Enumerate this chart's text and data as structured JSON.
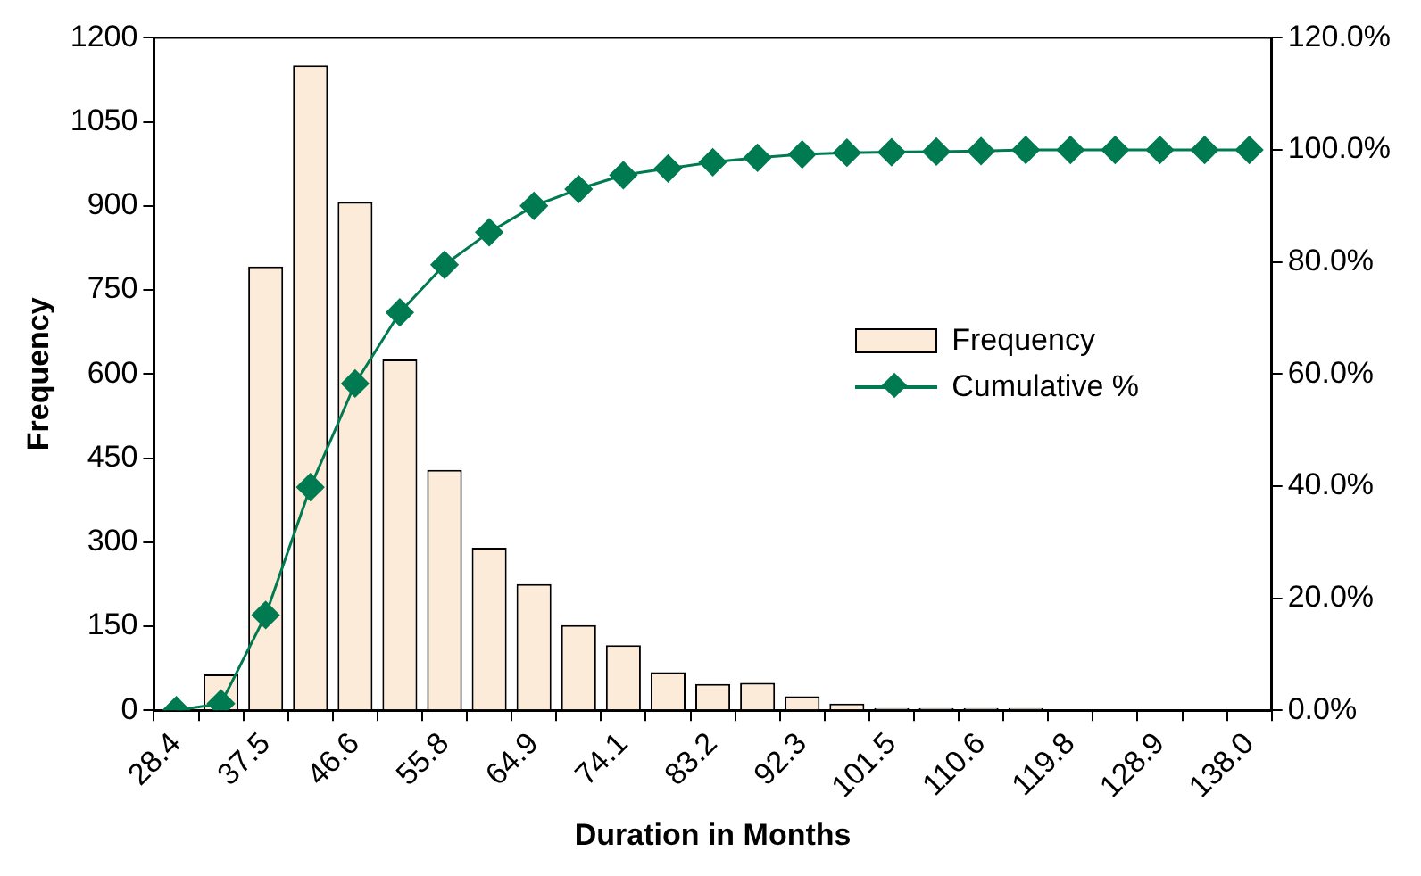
{
  "chart_data": {
    "type": "bar",
    "xlabel": "Duration in Months",
    "ylabel": "Frequency",
    "categories": [
      "28.4",
      null,
      "37.5",
      null,
      "46.6",
      null,
      "55.8",
      null,
      "64.9",
      null,
      "74.1",
      null,
      "83.2",
      null,
      "92.3",
      null,
      "101.5",
      null,
      "110.6",
      null,
      "119.8",
      null,
      "128.9",
      null,
      "138.0"
    ],
    "series": [
      {
        "name": "Frequency",
        "color": "#fdebd9",
        "values": [
          0,
          64,
          792,
          1151,
          907,
          626,
          429,
          290,
          225,
          152,
          116,
          68,
          47,
          49,
          25,
          12,
          4,
          4,
          4,
          4,
          0,
          0,
          0,
          0,
          0
        ]
      },
      {
        "name": "Cumulative %",
        "type": "line",
        "axis": "y2",
        "color": "#007a50",
        "values": [
          0,
          1.2,
          17,
          39.8,
          58.3,
          71,
          79.5,
          85.3,
          90,
          93,
          95.5,
          96.7,
          97.8,
          98.6,
          99.2,
          99.5,
          99.6,
          99.7,
          99.8,
          100,
          100,
          100,
          100,
          100,
          100
        ]
      }
    ],
    "ylim": [
      0,
      1200
    ],
    "yticks": [
      0,
      150,
      300,
      450,
      600,
      750,
      900,
      1050,
      1200
    ],
    "y2lim": [
      0,
      120
    ],
    "y2ticks": [
      {
        "value": 0,
        "label": "0.0%"
      },
      {
        "value": 20,
        "label": "20.0%"
      },
      {
        "value": 40,
        "label": "40.0%"
      },
      {
        "value": 60,
        "label": "60.0%"
      },
      {
        "value": 80,
        "label": "80.0%"
      },
      {
        "value": 100,
        "label": "100.0%"
      },
      {
        "value": 120,
        "label": "120.0%"
      }
    ],
    "grid": false,
    "legend": "right",
    "marker": "diamond",
    "line_style": "solid"
  }
}
